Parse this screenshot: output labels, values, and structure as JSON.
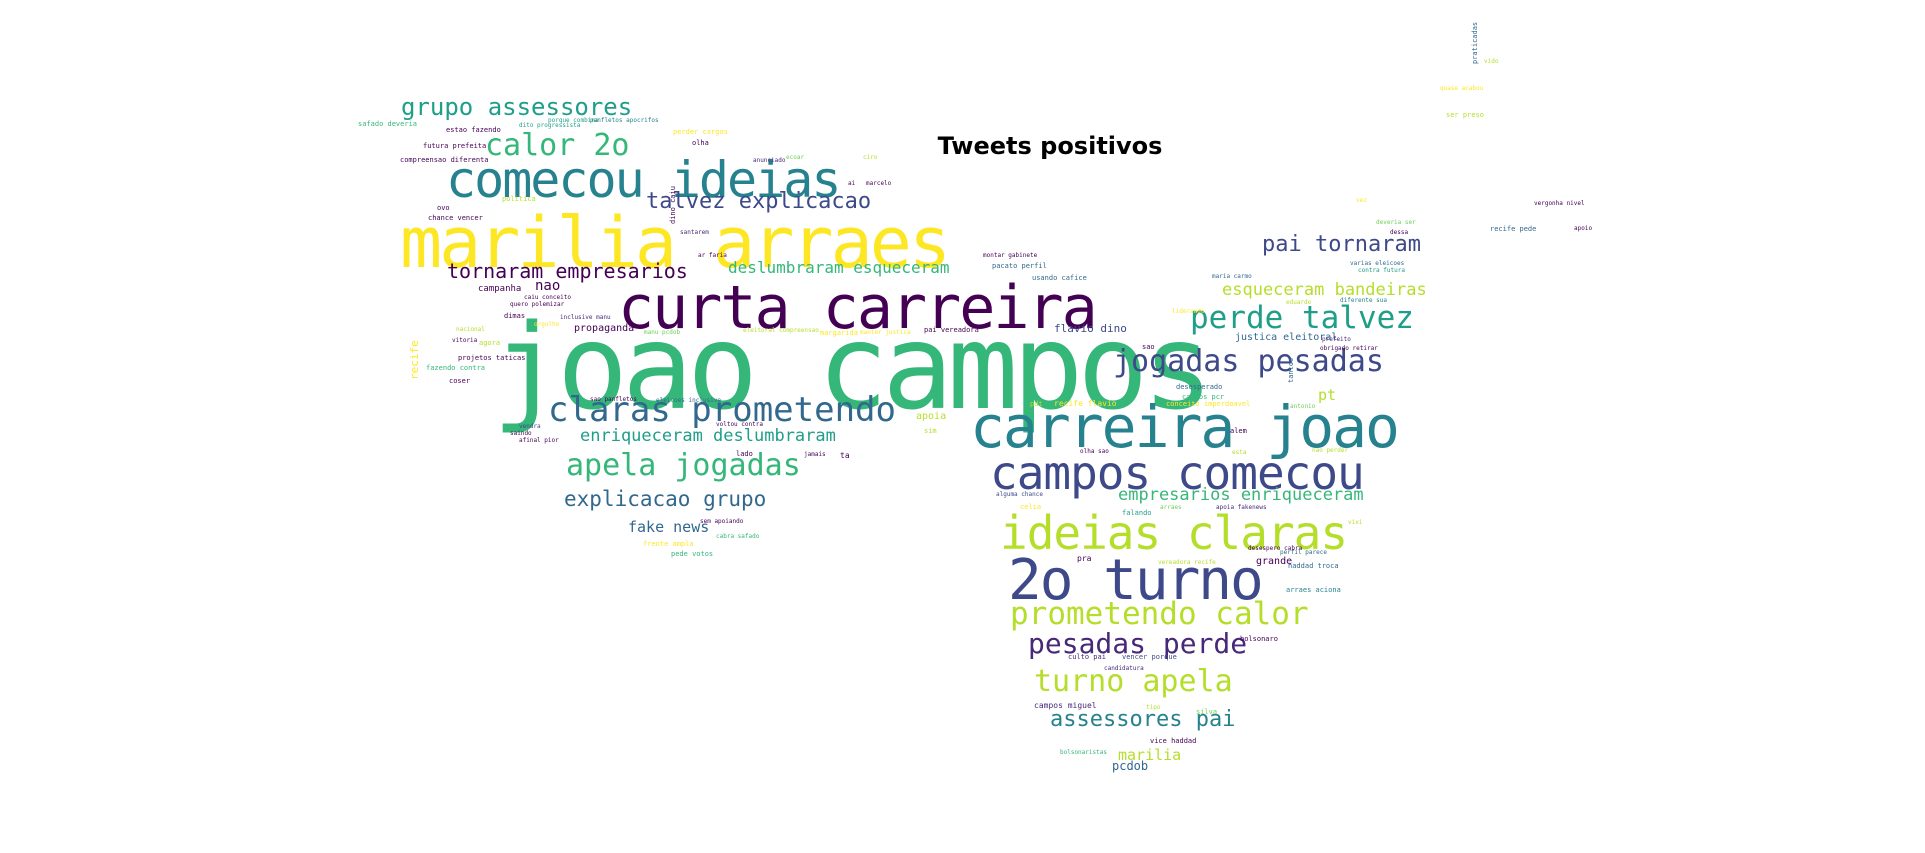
{
  "title": "Tweets positivos",
  "colors": {
    "yellow": "#fde725",
    "lime": "#b5de2b",
    "green": "#6ece58",
    "teal": "#35b779",
    "seagreen": "#1f9e89",
    "cyan": "#26828e",
    "blue": "#31688e",
    "indigo": "#3e4989",
    "purple": "#482878",
    "dark": "#440154"
  },
  "words": [
    {
      "text": "joao campos",
      "c": "teal"
    },
    {
      "text": "marilia arraes",
      "c": "yellow"
    },
    {
      "text": "curta carreira",
      "c": "dark"
    },
    {
      "text": "comecou ideias",
      "c": "cyan"
    },
    {
      "text": "carreira joao",
      "c": "cyan"
    },
    {
      "text": "2o turno",
      "c": "indigo"
    },
    {
      "text": "campos comecou",
      "c": "indigo"
    },
    {
      "text": "ideias claras",
      "c": "lime"
    },
    {
      "text": "claras prometendo",
      "c": "blue"
    },
    {
      "text": "perde talvez",
      "c": "seagreen"
    },
    {
      "text": "jogadas pesadas",
      "c": "indigo"
    },
    {
      "text": "apela jogadas",
      "c": "teal"
    },
    {
      "text": "prometendo calor",
      "c": "lime"
    },
    {
      "text": "pesadas perde",
      "c": "purple"
    },
    {
      "text": "turno apela",
      "c": "lime"
    },
    {
      "text": "calor 2o",
      "c": "teal"
    },
    {
      "text": "pai tornaram",
      "c": "indigo"
    },
    {
      "text": "grupo assessores",
      "c": "seagreen"
    },
    {
      "text": "talvez explicacao",
      "c": "indigo"
    },
    {
      "text": "tornaram empresarios",
      "c": "dark"
    },
    {
      "text": "explicacao grupo",
      "c": "blue"
    },
    {
      "text": "assessores pai",
      "c": "cyan"
    },
    {
      "text": "enriqueceram deslumbraram",
      "c": "seagreen"
    },
    {
      "text": "deslumbraram esqueceram",
      "c": "teal"
    },
    {
      "text": "esqueceram bandeiras",
      "c": "lime"
    },
    {
      "text": "empresarios enriqueceram",
      "c": "teal"
    },
    {
      "text": "fake news",
      "c": "blue"
    },
    {
      "text": "marilia",
      "c": "lime"
    },
    {
      "text": "nao",
      "c": "dark"
    },
    {
      "text": "pt",
      "c": "lime"
    },
    {
      "text": "pcdob",
      "c": "blue"
    },
    {
      "text": "flavio dino",
      "c": "indigo"
    },
    {
      "text": "justica eleitoral",
      "c": "blue"
    },
    {
      "text": "campanha",
      "c": "dark"
    },
    {
      "text": "propaganda",
      "c": "dark"
    },
    {
      "text": "grande",
      "c": "dark"
    },
    {
      "text": "recife",
      "c": "yellow"
    },
    {
      "text": "apoia",
      "c": "lime"
    },
    {
      "text": "haddad troca",
      "c": "blue"
    },
    {
      "text": "campos miguel",
      "c": "purple"
    },
    {
      "text": "vice haddad",
      "c": "dark"
    },
    {
      "text": "bolsonaro",
      "c": "dark"
    },
    {
      "text": "arraes aciona",
      "c": "cyan"
    },
    {
      "text": "culto pai",
      "c": "purple"
    },
    {
      "text": "vencer porque",
      "c": "indigo"
    },
    {
      "text": "candidatura",
      "c": "purple"
    },
    {
      "text": "alguma chance",
      "c": "indigo"
    },
    {
      "text": "desespero cabra",
      "c": "dark"
    },
    {
      "text": "perfil parece",
      "c": "blue"
    },
    {
      "text": "apoia fakenews",
      "c": "purple"
    },
    {
      "text": "olha sao",
      "c": "dark"
    },
    {
      "text": "nao perder",
      "c": "lime"
    },
    {
      "text": "recife flavio",
      "c": "yellow"
    },
    {
      "text": "conceito imperdoavel",
      "c": "yellow"
    },
    {
      "text": "vereadora recife",
      "c": "lime"
    },
    {
      "text": "maria carmo",
      "c": "blue"
    },
    {
      "text": "pai vereadora",
      "c": "dark"
    },
    {
      "text": "desesperado",
      "c": "blue"
    },
    {
      "text": "cargos pcr",
      "c": "teal"
    },
    {
      "text": "antonio",
      "c": "green"
    },
    {
      "text": "obrigado retirar",
      "c": "dark"
    },
    {
      "text": "prefeito",
      "c": "purple"
    },
    {
      "text": "eduardo",
      "c": "lime"
    },
    {
      "text": "diferente sua",
      "c": "cyan"
    },
    {
      "text": "varias eleicoes",
      "c": "blue"
    },
    {
      "text": "contra futura",
      "c": "seagreen"
    },
    {
      "text": "recife pede",
      "c": "blue"
    },
    {
      "text": "dessa",
      "c": "dark"
    },
    {
      "text": "deveria ser",
      "c": "green"
    },
    {
      "text": "vergonha nivel",
      "c": "dark"
    },
    {
      "text": "apoio",
      "c": "dark"
    },
    {
      "text": "sem apoiando",
      "c": "dark"
    },
    {
      "text": "pede votos",
      "c": "teal"
    },
    {
      "text": "frente ampla",
      "c": "yellow"
    },
    {
      "text": "cabra safado",
      "c": "teal"
    },
    {
      "text": "voltou contra",
      "c": "dark"
    },
    {
      "text": "eleicoes inclusive",
      "c": "blue"
    },
    {
      "text": "sao panfletos",
      "c": "dark"
    },
    {
      "text": "lado",
      "c": "dark"
    },
    {
      "text": "ta",
      "c": "dark"
    },
    {
      "text": "jamais",
      "c": "dark"
    },
    {
      "text": "olha",
      "c": "dark"
    },
    {
      "text": "marcelo",
      "c": "dark"
    },
    {
      "text": "perder cargos",
      "c": "yellow"
    },
    {
      "text": "panfletos apocrifos",
      "c": "cyan"
    },
    {
      "text": "porque combina",
      "c": "seagreen"
    },
    {
      "text": "dito progressista",
      "c": "seagreen"
    },
    {
      "text": "estao fazendo",
      "c": "dark"
    },
    {
      "text": "futura prefeita",
      "c": "dark"
    },
    {
      "text": "safado deveria",
      "c": "teal"
    },
    {
      "text": "compreensao diferenta",
      "c": "dark"
    },
    {
      "text": "chance vencer",
      "c": "dark"
    },
    {
      "text": "ovo",
      "c": "dark"
    },
    {
      "text": "politica",
      "c": "lime"
    },
    {
      "text": "agora",
      "c": "lime"
    },
    {
      "text": "dimas",
      "c": "dark"
    },
    {
      "text": "nacional",
      "c": "lime"
    },
    {
      "text": "projetos taticas",
      "c": "dark"
    },
    {
      "text": "fazendo contra",
      "c": "teal"
    },
    {
      "text": "coser",
      "c": "dark"
    },
    {
      "text": "vitoria",
      "c": "dark"
    },
    {
      "text": "vendra",
      "c": "indigo"
    },
    {
      "text": "saindo",
      "c": "dark"
    },
    {
      "text": "afinal pior",
      "c": "dark"
    },
    {
      "text": "inclusive manu",
      "c": "purple"
    },
    {
      "text": "manu pcdob",
      "c": "green"
    },
    {
      "text": "eleitoral compreensao",
      "c": "lime"
    },
    {
      "text": "manter justica",
      "c": "yellow"
    },
    {
      "text": "caiu conceito",
      "c": "dark"
    },
    {
      "text": "quero polemizar",
      "c": "dark"
    },
    {
      "text": "orgulho",
      "c": "yellow"
    },
    {
      "text": "usando cafice",
      "c": "blue"
    },
    {
      "text": "pacato perfil",
      "c": "blue"
    },
    {
      "text": "montar gabinete",
      "c": "dark"
    },
    {
      "text": "dino caiu",
      "c": "dark"
    },
    {
      "text": "santarem",
      "c": "purple"
    },
    {
      "text": "ar faria",
      "c": "dark"
    },
    {
      "text": "ciro",
      "c": "lime"
    },
    {
      "text": "ai",
      "c": "dark"
    },
    {
      "text": "anunciado",
      "c": "purple"
    },
    {
      "text": "margarida",
      "c": "yellow"
    },
    {
      "text": "ecoar",
      "c": "green"
    },
    {
      "text": "celia",
      "c": "yellow"
    },
    {
      "text": "falando",
      "c": "seagreen"
    },
    {
      "text": "pra",
      "c": "dark"
    },
    {
      "text": "liderando",
      "c": "yellow"
    },
    {
      "text": "alem",
      "c": "dark"
    },
    {
      "text": "quase acabou",
      "c": "yellow"
    },
    {
      "text": "ser preso",
      "c": "lime"
    },
    {
      "text": "praticadas",
      "c": "blue"
    },
    {
      "text": "vido",
      "c": "lime"
    },
    {
      "text": "esta",
      "c": "lime"
    },
    {
      "text": "arraes",
      "c": "green"
    },
    {
      "text": "sim",
      "c": "lime"
    },
    {
      "text": "pdt",
      "c": "lime"
    },
    {
      "text": "sao",
      "c": "dark"
    },
    {
      "text": "tipo",
      "c": "lime"
    },
    {
      "text": "silva",
      "c": "green"
    },
    {
      "text": "tantos",
      "c": "blue"
    },
    {
      "text": "bolsonaristas",
      "c": "teal"
    },
    {
      "text": "vez",
      "c": "yellow"
    },
    {
      "text": "vixi",
      "c": "lime"
    }
  ]
}
